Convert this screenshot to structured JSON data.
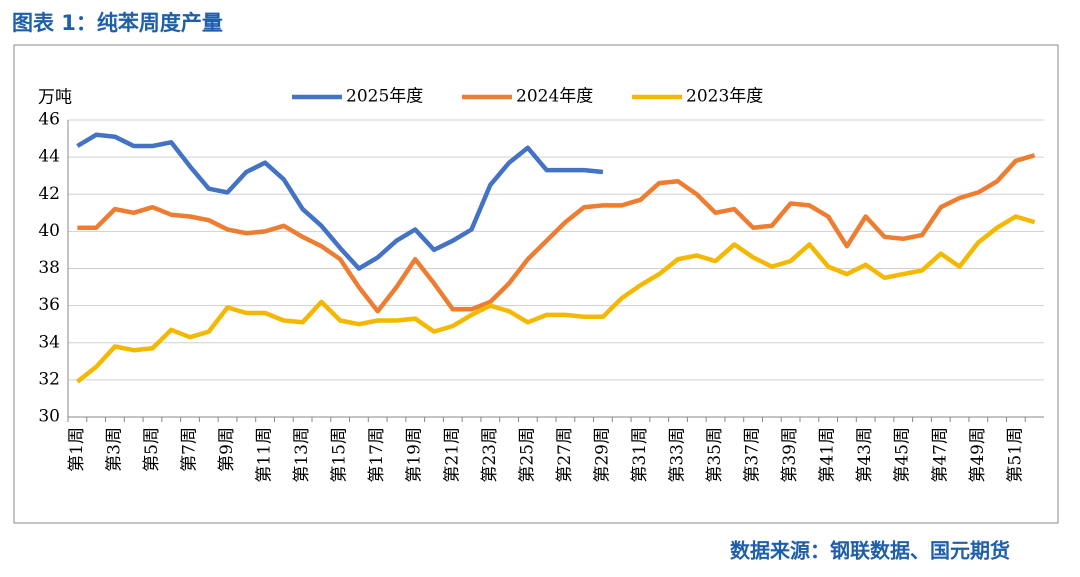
{
  "chart_data": {
    "type": "line",
    "title": "图表 1：纯苯周度产量",
    "y_label": "万吨",
    "source": "数据来源：钢联数据、国元期货",
    "categories": [
      "第1周",
      null,
      "第3周",
      null,
      "第5周",
      null,
      "第7周",
      null,
      "第9周",
      null,
      "第11周",
      null,
      "第13周",
      null,
      "第15周",
      null,
      "第17周",
      null,
      "第19周",
      null,
      "第21周",
      null,
      "第23周",
      null,
      "第25周",
      null,
      "第27周",
      null,
      "第29周",
      null,
      "第31周",
      null,
      "第33周",
      null,
      "第35周",
      null,
      "第37周",
      null,
      "第39周",
      null,
      "第41周",
      null,
      "第43周",
      null,
      "第45周",
      null,
      "第47周",
      null,
      "第49周",
      null,
      "第51周",
      null
    ],
    "series": [
      {
        "name": "2025年度",
        "color": "#4472c4",
        "values": [
          44.6,
          45.2,
          45.1,
          44.6,
          44.6,
          44.8,
          43.5,
          42.3,
          42.1,
          43.2,
          43.7,
          42.8,
          41.2,
          40.3,
          39.1,
          38.0,
          38.6,
          39.5,
          40.1,
          39.0,
          39.5,
          40.1,
          42.5,
          43.7,
          44.5,
          43.3,
          43.3,
          43.3,
          43.2,
          null,
          null,
          null,
          null,
          null,
          null,
          null,
          null,
          null,
          null,
          null,
          null,
          null,
          null,
          null,
          null,
          null,
          null,
          null,
          null,
          null,
          null,
          null
        ]
      },
      {
        "name": "2024年度",
        "color": "#ed7d31",
        "values": [
          40.2,
          40.2,
          41.2,
          41.0,
          41.3,
          40.9,
          40.8,
          40.6,
          40.1,
          39.9,
          40.0,
          40.3,
          39.7,
          39.2,
          38.5,
          37.0,
          35.7,
          37.0,
          38.5,
          37.2,
          35.8,
          35.8,
          36.2,
          37.2,
          38.5,
          39.5,
          40.5,
          41.3,
          41.4,
          41.4,
          41.7,
          42.6,
          42.7,
          42.0,
          41.0,
          41.2,
          40.2,
          40.3,
          41.5,
          41.4,
          40.8,
          39.2,
          40.8,
          39.7,
          39.6,
          39.8,
          41.3,
          41.8,
          42.1,
          42.7,
          43.8,
          44.1
        ]
      },
      {
        "name": "2023年度",
        "color": "#f5b800",
        "values": [
          31.9,
          32.7,
          33.8,
          33.6,
          33.7,
          34.7,
          34.3,
          34.6,
          35.9,
          35.6,
          35.6,
          35.2,
          35.1,
          36.2,
          35.2,
          35.0,
          35.2,
          35.2,
          35.3,
          34.6,
          34.9,
          35.5,
          36.0,
          35.7,
          35.1,
          35.5,
          35.5,
          35.4,
          35.4,
          36.4,
          37.1,
          37.7,
          38.5,
          38.7,
          38.4,
          39.3,
          38.6,
          38.1,
          38.4,
          39.3,
          38.1,
          37.7,
          38.2,
          37.5,
          37.7,
          37.9,
          38.8,
          38.1,
          39.4,
          40.2,
          40.8,
          40.5
        ]
      }
    ],
    "ylim": [
      30,
      46
    ],
    "yticks": [
      30,
      32,
      34,
      36,
      38,
      40,
      42,
      44,
      46
    ],
    "grid": true,
    "legend": "top"
  }
}
